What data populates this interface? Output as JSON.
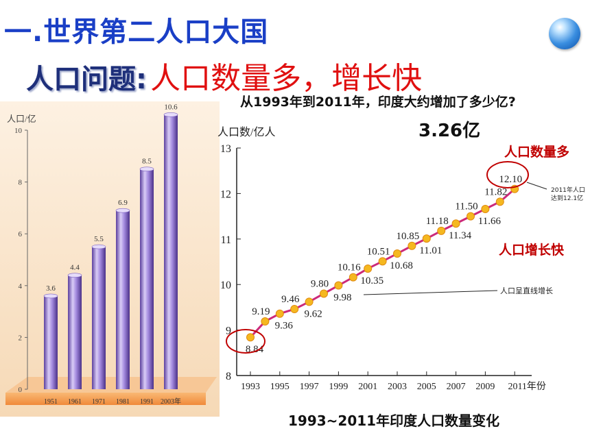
{
  "header": {
    "title": "一.世界第二人口大国",
    "subtitle_prefix": "人口问题:",
    "subtitle_main": "人口数量多，增长快",
    "question": "从1993年到2011年，印度大约增加了多少亿?",
    "answer": "3.26亿"
  },
  "chart_data": [
    {
      "type": "bar",
      "ylabel": "人口/亿",
      "ylim": [
        0,
        10
      ],
      "yticks": [
        "0",
        "2",
        "4",
        "6",
        "8",
        "10"
      ],
      "categories": [
        "1951",
        "1961",
        "1971",
        "1981",
        "1991",
        "2003年"
      ],
      "values": [
        3.6,
        4.4,
        5.5,
        6.9,
        8.5,
        10.6
      ],
      "value_labels": [
        "3.6",
        "4.4",
        "5.5",
        "6.9",
        "8.5",
        "10.6"
      ]
    },
    {
      "type": "line",
      "ylabel": "人口数/亿人",
      "ylim": [
        8,
        13
      ],
      "yticks": [
        "8",
        "9",
        "10",
        "11",
        "12",
        "13"
      ],
      "xticks": [
        "1993",
        "1995",
        "1997",
        "1999",
        "2001",
        "2003",
        "2005",
        "2007",
        "2009",
        "2011年份"
      ],
      "x": [
        1993,
        1994,
        1995,
        1996,
        1997,
        1998,
        1999,
        2000,
        2001,
        2002,
        2003,
        2004,
        2005,
        2006,
        2007,
        2008,
        2009,
        2010,
        2011
      ],
      "values": [
        8.84,
        9.19,
        9.36,
        9.46,
        9.62,
        9.8,
        9.98,
        10.16,
        10.35,
        10.51,
        10.68,
        10.85,
        11.01,
        11.18,
        11.34,
        11.5,
        11.66,
        11.82,
        12.1
      ],
      "labels": [
        "8.84",
        "9.19",
        "9.36",
        "9.46",
        "9.62",
        "9.80",
        "9.98",
        "10.16",
        "10.35",
        "10.51",
        "10.68",
        "10.85",
        "11.01",
        "11.18",
        "11.34",
        "11.50",
        "11.66",
        "11.82",
        "12.10"
      ],
      "annotations": {
        "many": "人口数量多",
        "fast": "人口增长快",
        "reach_1": "2011年人口",
        "reach_2": "达到12.1亿",
        "linear": "人口呈直线增长"
      },
      "caption": "1993~2011年印度人口数量变化"
    }
  ],
  "colors": {
    "title": "#1a3fc6",
    "highlight": "#e01010",
    "annotation": "#c00000",
    "line": "#cc2a7a",
    "marker": "#f5b820",
    "bar": "#a58ce0"
  }
}
